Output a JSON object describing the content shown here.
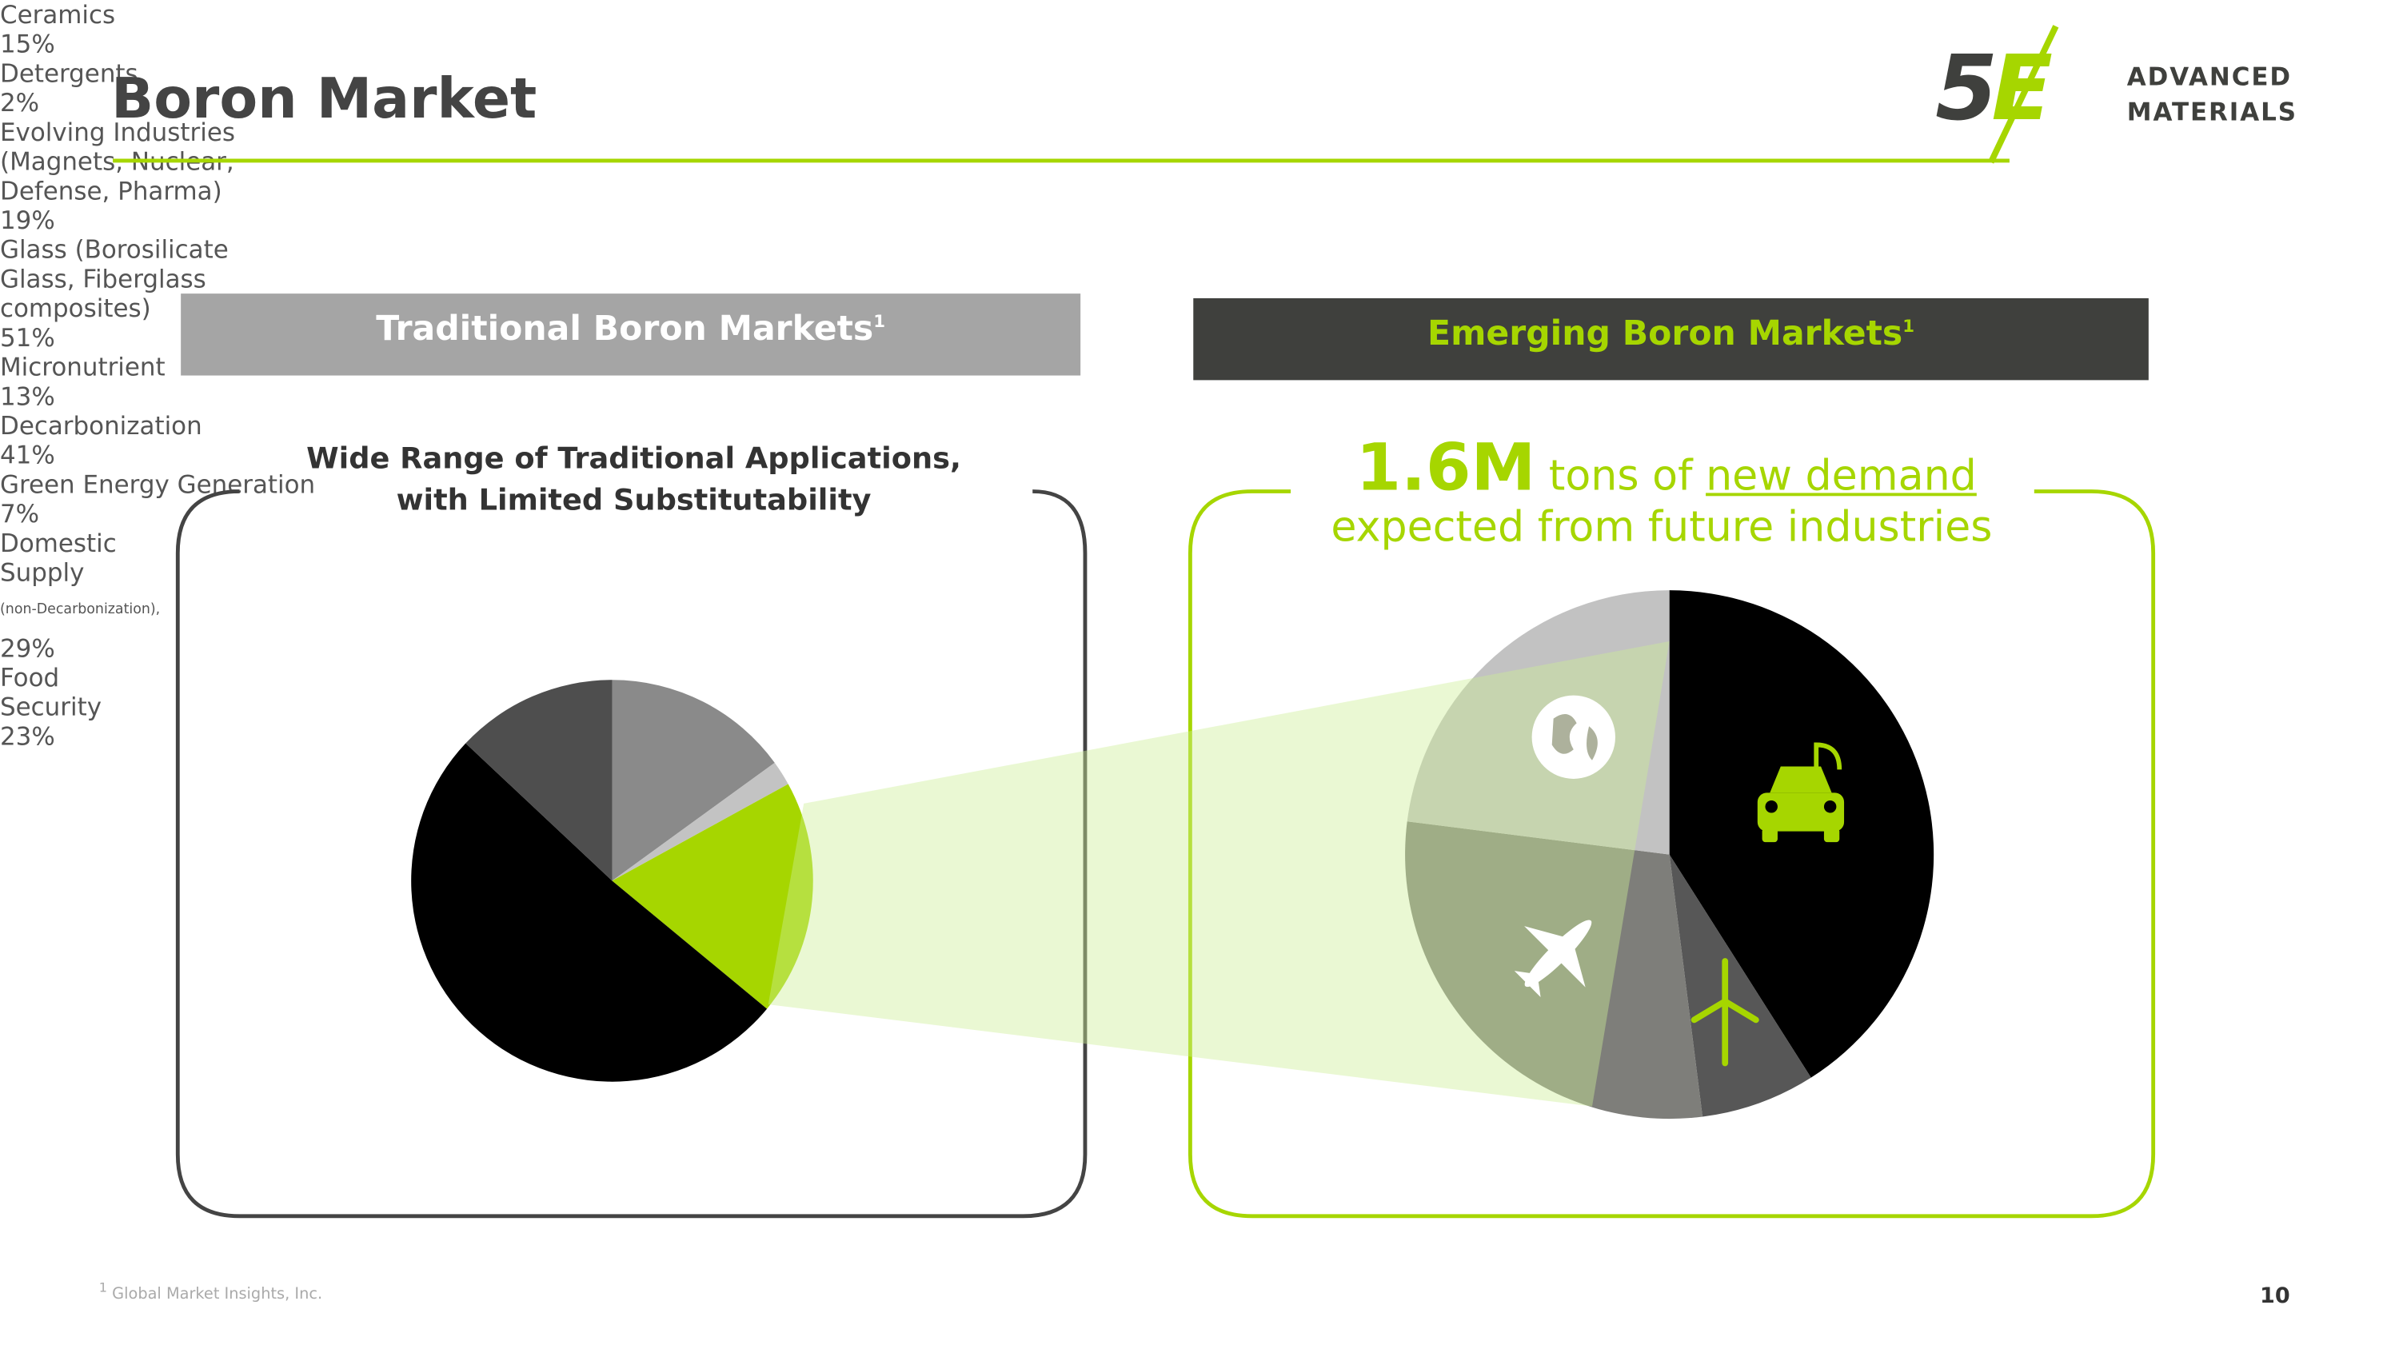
{
  "header": {
    "title": "Boron Market",
    "logo": "5E",
    "logo_text": [
      "ADVANCED",
      "MATERIALS"
    ]
  },
  "sections": [
    {
      "title": "Traditional Boron Markets",
      "sup": "1"
    },
    {
      "title": "Emerging Boron Markets",
      "sup": "1"
    }
  ],
  "callout": {
    "amount": "1.6M",
    "text": "tons of",
    "link": "new demand",
    "subtext": "expected from future industries"
  },
  "chart_data": [
    {
      "type": "pie",
      "title": "Wide Range of Traditional Applications, with Limited Substitutability",
      "categories": [
        "Ceramics",
        "Detergents",
        "Evolving Industries (Magnets, Nuclear, Defense, Pharma)",
        "Glass (Borosilicate Glass, Fiberglass composites)",
        "Micronutrient"
      ],
      "values": [
        15,
        2,
        19,
        51,
        13
      ],
      "value_labels": [
        "15%",
        "2%",
        "19%",
        "51%",
        "13%"
      ],
      "colors": [
        "#8a8a8a",
        "#c3c3c3",
        "#a6d600",
        "#000000",
        "#4e4e4e"
      ]
    },
    {
      "type": "pie",
      "categories": [
        "Decarbonization",
        "Green Energy Generation",
        "Domestic Supply",
        "Food Security"
      ],
      "values": [
        41,
        7,
        29,
        23
      ],
      "value_labels": [
        "41%",
        "7%",
        "29%",
        "23%"
      ],
      "note": "(non-Decarbonization),",
      "colors": [
        "#000000",
        "#575757",
        "#7e7e7a",
        "#c2c2c2"
      ]
    }
  ],
  "footer": {
    "footnote_mark": "1",
    "footnote": "Global Market Insights, Inc.",
    "page": "10"
  }
}
